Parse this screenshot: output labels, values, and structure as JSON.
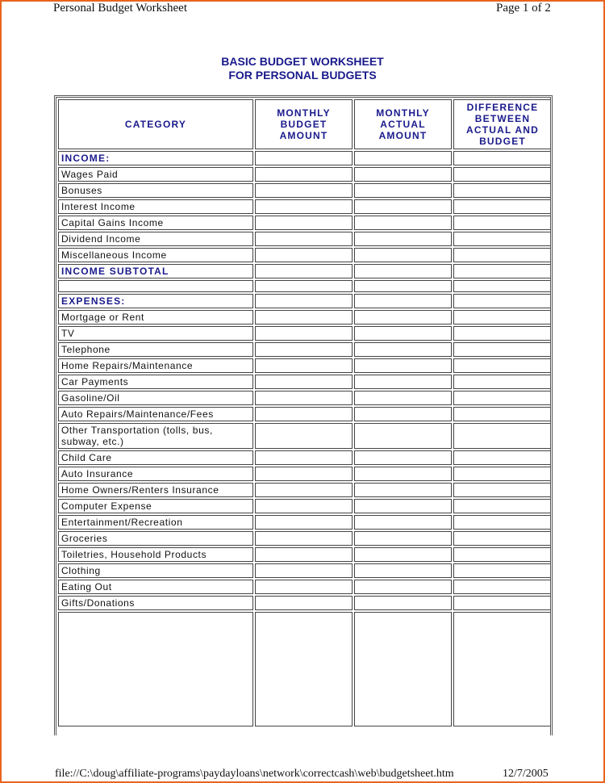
{
  "header": {
    "left": "Personal Budget Worksheet",
    "right": "Page 1 of 2"
  },
  "title": {
    "line1": "BASIC BUDGET WORKSHEET",
    "line2": "FOR PERSONAL BUDGETS"
  },
  "columns": [
    "CATEGORY",
    "MONTHLY BUDGET AMOUNT",
    "MONTHLY ACTUAL AMOUNT",
    "DIFFERENCE BETWEEN ACTUAL AND BUDGET"
  ],
  "rows": [
    {
      "label": "INCOME:",
      "type": "sec"
    },
    {
      "label": "Wages Paid"
    },
    {
      "label": "Bonuses"
    },
    {
      "label": "Interest Income"
    },
    {
      "label": "Capital Gains Income"
    },
    {
      "label": "Dividend Income"
    },
    {
      "label": "Miscellaneous Income"
    },
    {
      "label": "INCOME SUBTOTAL",
      "type": "sec"
    },
    {
      "label": "",
      "type": "blank"
    },
    {
      "label": "EXPENSES:",
      "type": "sec"
    },
    {
      "label": "Mortgage or Rent"
    },
    {
      "label": "TV"
    },
    {
      "label": "Telephone"
    },
    {
      "label": "Home Repairs/Maintenance"
    },
    {
      "label": "Car Payments"
    },
    {
      "label": "Gasoline/Oil"
    },
    {
      "label": "Auto Repairs/Maintenance/Fees"
    },
    {
      "label": "Other Transportation (tolls, bus, subway, etc.)",
      "type": "tall"
    },
    {
      "label": "Child Care"
    },
    {
      "label": "Auto Insurance"
    },
    {
      "label": "Home Owners/Renters Insurance"
    },
    {
      "label": "Computer Expense"
    },
    {
      "label": "Entertainment/Recreation"
    },
    {
      "label": "Groceries"
    },
    {
      "label": "Toiletries, Household Products"
    },
    {
      "label": "Clothing"
    },
    {
      "label": "Eating Out"
    },
    {
      "label": "Gifts/Donations"
    },
    {
      "label": "",
      "type": "big"
    }
  ],
  "footer": {
    "path": "file://C:\\doug\\affiliate-programs\\paydayloans\\network\\correctcash\\web\\budgetsheet.htm",
    "date": "12/7/2005"
  },
  "colors": {
    "heading": "#1a1a8c",
    "page_border": "#e8651f"
  }
}
